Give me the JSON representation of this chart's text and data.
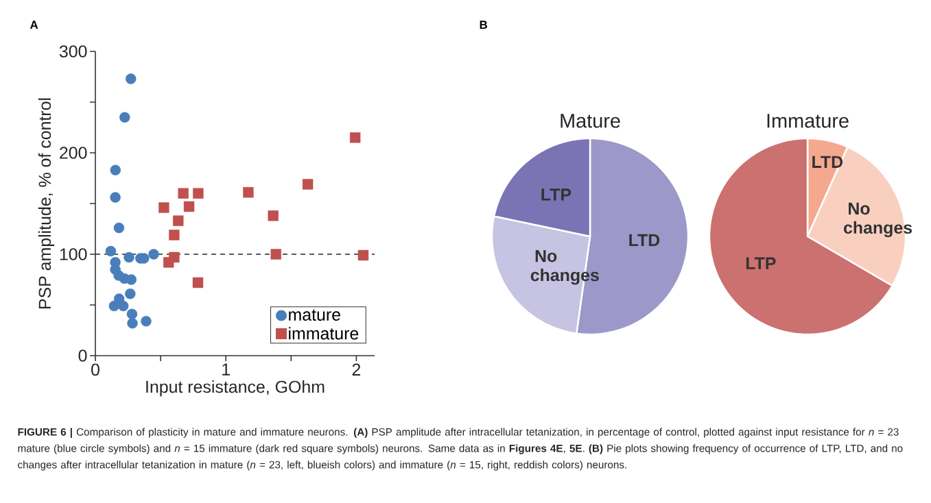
{
  "chart_data": [
    {
      "type": "scatter",
      "xlabel": "Input resistance, GOhm",
      "ylabel": "PSP amplitude, % of control",
      "xlim": [
        0,
        2.14
      ],
      "ylim": [
        0,
        300
      ],
      "xticks": [
        0,
        {
          "value": 0.5,
          "label": null
        },
        1,
        {
          "value": 1.5,
          "label": null
        },
        2
      ],
      "yticks": [
        0,
        {
          "value": 50,
          "label": null
        },
        100,
        {
          "value": 150,
          "label": null
        },
        200,
        {
          "value": 250,
          "label": null
        },
        300
      ],
      "legend": "bottom right",
      "ref_lines": [
        {
          "axis": "y",
          "value": 100,
          "line_style": "dashed",
          "color": "#222222"
        }
      ],
      "series": [
        {
          "name": "mature",
          "color": "#4a7ebb",
          "marker": "circle",
          "x": [
            0.272,
            0.225,
            0.154,
            0.153,
            0.181,
            0.118,
            0.258,
            0.346,
            0.372,
            0.447,
            0.153,
            0.153,
            0.179,
            0.223,
            0.275,
            0.267,
            0.182,
            0.144,
            0.214,
            0.281,
            0.284,
            0.389
          ],
          "values": [
            273,
            235,
            183,
            156,
            126,
            103,
            97,
            96,
            96,
            100,
            92,
            85,
            79,
            76,
            75,
            61,
            56,
            49,
            49,
            41,
            32,
            34
          ]
        },
        {
          "name": "immature",
          "color": "#c0504d",
          "marker": "square",
          "x": [
            1.991,
            1.628,
            1.172,
            0.674,
            0.788,
            0.525,
            0.718,
            0.635,
            0.604,
            1.363,
            1.384,
            2.053,
            0.604,
            0.561,
            0.786
          ],
          "values": [
            215,
            169,
            161,
            160,
            160,
            146,
            147,
            133,
            119,
            138,
            100,
            99,
            97,
            92,
            72
          ]
        }
      ],
      "annotations": [
        "A",
        "**FIGURE 6 |** Comparison of plasticity in mature and immature neurons. **(A)** PSP amplitude after intracellular tetanization, in percentage of control, plotted against input resistance for *n* = 23 mature (blue circle symbols) and *n* = 15 immature (dark red square symbols) neurons. Same data as in **Figures 4E**, **5E**. **(B)** Pie plots showing frequency of occurrence of LTP, LTD, and no changes after intracellular tetanization in mature (*n* = 23, left, blueish colors) and immature (*n* = 15, right, reddish colors) neurons."
      ]
    },
    {
      "type": "pie",
      "title": "Mature",
      "categories": [
        "LTD",
        "No changes",
        "LTP"
      ],
      "values": [
        52.2,
        26.1,
        21.7
      ],
      "colors": [
        "#9c98c9",
        "#c7c3e2",
        "#7a74b5"
      ],
      "annotations": [
        "B"
      ]
    },
    {
      "type": "pie",
      "title": "Immature",
      "categories": [
        "LTD",
        "No changes",
        "LTP"
      ],
      "values": [
        6.7,
        26.7,
        66.6
      ],
      "colors": [
        "#f4a98f",
        "#f9d0c0",
        "#cb716f"
      ]
    }
  ]
}
